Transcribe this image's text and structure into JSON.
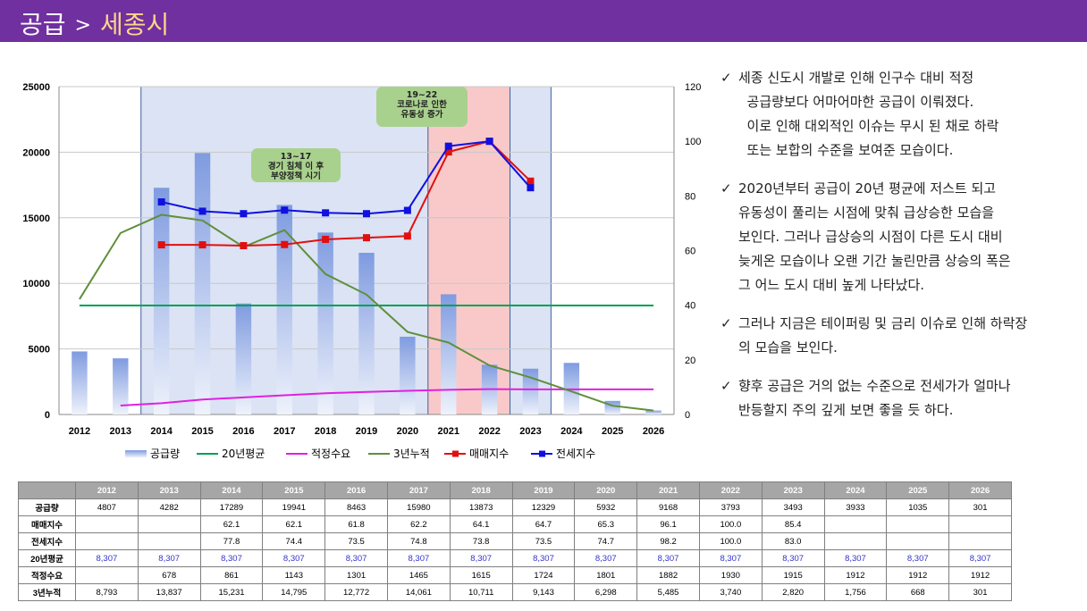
{
  "header": {
    "title": "공급",
    "separator": ">",
    "subtitle": "세종시"
  },
  "chart_data": {
    "type": "bar",
    "categories": [
      "2012",
      "2013",
      "2014",
      "2015",
      "2016",
      "2017",
      "2018",
      "2019",
      "2020",
      "2021",
      "2022",
      "2023",
      "2024",
      "2025",
      "2026"
    ],
    "y_left": {
      "min": 0,
      "max": 25000,
      "ticks": [
        "0",
        "5000",
        "10000",
        "15000",
        "20000",
        "25000"
      ]
    },
    "y_right": {
      "min": 0,
      "max": 120,
      "ticks": [
        "0",
        "20",
        "40",
        "60",
        "80",
        "100",
        "120"
      ]
    },
    "series": [
      {
        "name": "공급량",
        "type": "bar",
        "axis": "left",
        "color": "#8aa4e0",
        "values": [
          4807,
          4282,
          17289,
          19941,
          8463,
          15980,
          13873,
          12329,
          5932,
          9168,
          3793,
          3493,
          3933,
          1035,
          301
        ]
      },
      {
        "name": "20년평균",
        "type": "line",
        "axis": "left",
        "color": "#00a050",
        "values": [
          8307,
          8307,
          8307,
          8307,
          8307,
          8307,
          8307,
          8307,
          8307,
          8307,
          8307,
          8307,
          8307,
          8307,
          8307
        ]
      },
      {
        "name": "적정수요",
        "type": "line",
        "axis": "left",
        "color": "#e020e0",
        "values": [
          null,
          678,
          861,
          1143,
          1301,
          1465,
          1615,
          1724,
          1801,
          1882,
          1930,
          1915,
          1912,
          1912,
          1912
        ]
      },
      {
        "name": "3년누적",
        "type": "line",
        "axis": "left",
        "color": "#5f8f3a",
        "values": [
          8793,
          13837,
          15231,
          14795,
          12772,
          14061,
          10711,
          9143,
          6298,
          5485,
          3740,
          2820,
          1756,
          668,
          301
        ]
      },
      {
        "name": "매매지수",
        "type": "line",
        "axis": "right",
        "color": "#e01010",
        "marker": "square",
        "values": [
          null,
          null,
          62.1,
          62.1,
          61.8,
          62.2,
          64.1,
          64.7,
          65.3,
          96.1,
          100.0,
          85.4,
          null,
          null,
          null
        ]
      },
      {
        "name": "전세지수",
        "type": "line",
        "axis": "right",
        "color": "#1010e0",
        "marker": "square",
        "values": [
          null,
          null,
          77.8,
          74.4,
          73.5,
          74.8,
          73.8,
          73.5,
          74.7,
          98.2,
          100.0,
          83.0,
          null,
          null,
          null
        ]
      }
    ],
    "shaded_regions": [
      {
        "from": "2014",
        "to": "2023",
        "color": "#dbe3f4",
        "border": "#4060a0"
      },
      {
        "from": "2021",
        "to": "2022",
        "color": "#f9c9c9"
      }
    ],
    "annotations": [
      {
        "lines": [
          "13~17",
          "경기 침체 이 후",
          "부양정책 시기"
        ],
        "color": "#a9d18e"
      },
      {
        "lines": [
          "19~22",
          "코로나로 인한",
          "유동성 증가"
        ],
        "color": "#a9d18e"
      }
    ],
    "legend_position": "bottom"
  },
  "bullets": [
    {
      "check": "✓",
      "lines": [
        "세종 신도시 개발로 인해 인구수 대비 적정",
        "  공급량보다 어마어마한 공급이 이뤄졌다.",
        "  이로 인해 대외적인 이슈는 무시 된 채로 하락",
        "  또는 보합의 수준을 보여준 모습이다."
      ]
    },
    {
      "check": "✓",
      "lines": [
        "2020년부터 공급이 20년 평균에 저스트 되고",
        "유동성이 풀리는 시점에 맞춰 급상승한 모습을",
        "보인다. 그러나 급상승의 시점이 다른 도시 대비",
        "늦게온 모습이나 오랜 기간 눌린만큼 상승의 폭은",
        "그 어느 도시 대비 높게 나타났다."
      ]
    },
    {
      "check": "✓",
      "lines": [
        "그러나 지금은 테이퍼링 및 금리 이슈로 인해 하락장",
        "의 모습을 보인다."
      ]
    },
    {
      "check": "✓",
      "lines": [
        "향후 공급은 거의 없는 수준으로 전세가가 얼마나",
        "반등할지 주의 깊게 보면 좋을 듯 하다."
      ]
    }
  ],
  "table": {
    "headers": [
      "2012",
      "2013",
      "2014",
      "2015",
      "2016",
      "2017",
      "2018",
      "2019",
      "2020",
      "2021",
      "2022",
      "2023",
      "2024",
      "2025",
      "2026"
    ],
    "rows": [
      {
        "label": "공급량",
        "cells": [
          "4807",
          "4282",
          "17289",
          "19941",
          "8463",
          "15980",
          "13873",
          "12329",
          "5932",
          "9168",
          "3793",
          "3493",
          "3933",
          "1035",
          "301"
        ]
      },
      {
        "label": "매매지수",
        "cells": [
          "",
          "",
          "62.1",
          "62.1",
          "61.8",
          "62.2",
          "64.1",
          "64.7",
          "65.3",
          "96.1",
          "100.0",
          "85.4",
          "",
          "",
          ""
        ]
      },
      {
        "label": "전세지수",
        "cells": [
          "",
          "",
          "77.8",
          "74.4",
          "73.5",
          "74.8",
          "73.8",
          "73.5",
          "74.7",
          "98.2",
          "100.0",
          "83.0",
          "",
          "",
          ""
        ]
      },
      {
        "label": "20년평균",
        "cells": [
          "8,307",
          "8,307",
          "8,307",
          "8,307",
          "8,307",
          "8,307",
          "8,307",
          "8,307",
          "8,307",
          "8,307",
          "8,307",
          "8,307",
          "8,307",
          "8,307",
          "8,307"
        ]
      },
      {
        "label": "적정수요",
        "cells": [
          "",
          "678",
          "861",
          "1143",
          "1301",
          "1465",
          "1615",
          "1724",
          "1801",
          "1882",
          "1930",
          "1915",
          "1912",
          "1912",
          "1912"
        ]
      },
      {
        "label": "3년누적",
        "cells": [
          "8,793",
          "13,837",
          "15,231",
          "14,795",
          "12,772",
          "14,061",
          "10,711",
          "9,143",
          "6,298",
          "5,485",
          "3,740",
          "2,820",
          "1,756",
          "668",
          "301"
        ]
      }
    ]
  }
}
